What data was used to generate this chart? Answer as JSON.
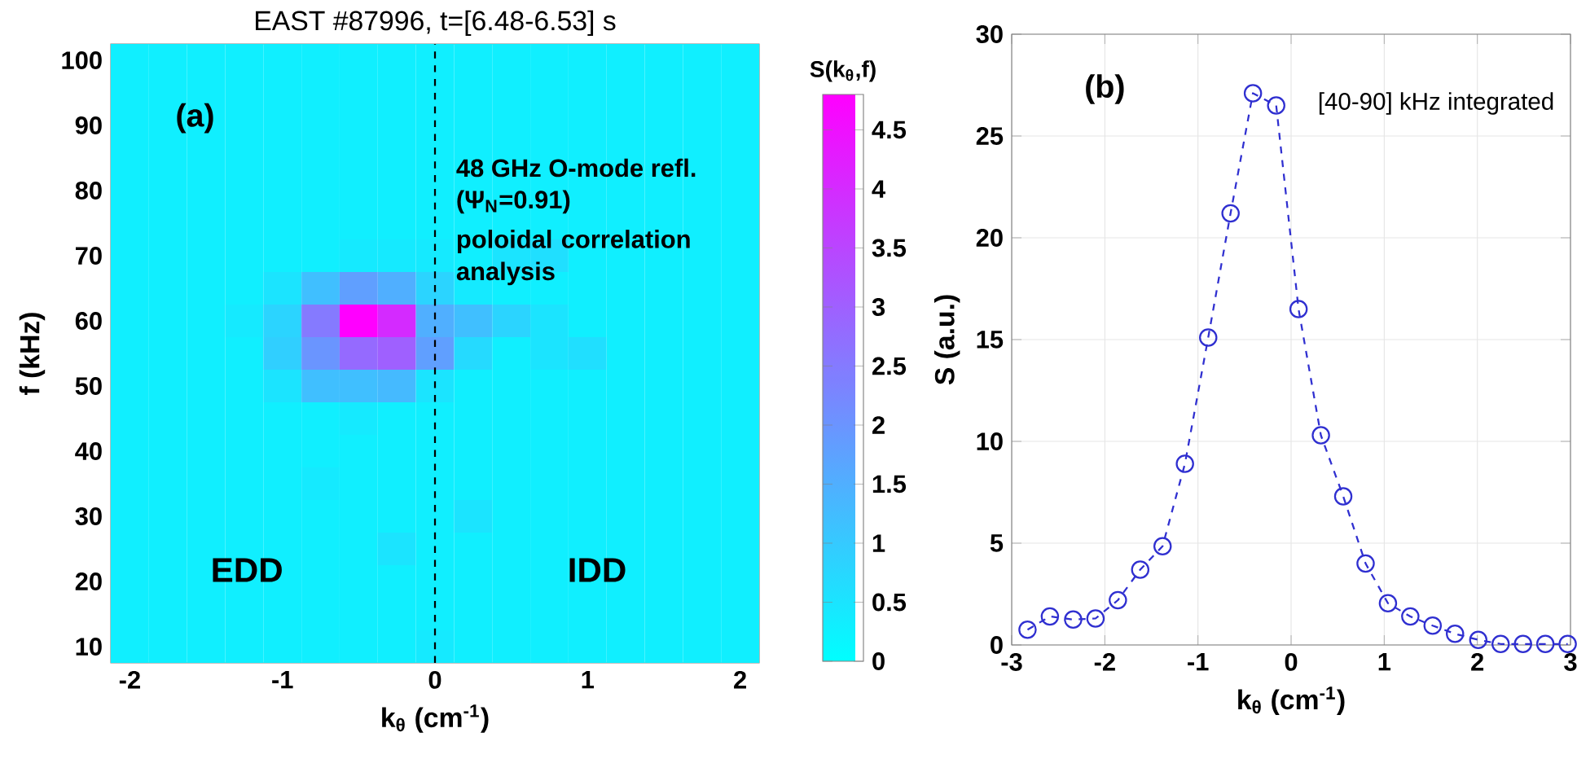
{
  "chart_data": [
    {
      "type": "heatmap",
      "title": "EAST #87996, t=[6.48-6.53] s",
      "xlabel": "k$_{θ}$ (cm$^{-1}$)",
      "ylabel": "f (kHz)",
      "clabel": "S(k$_{θ}$,f)",
      "categories": [
        "-2",
        null,
        null,
        null,
        "-1",
        null,
        null,
        null,
        "0",
        null,
        null,
        null,
        "1",
        null,
        null,
        null,
        "2"
      ],
      "y_categories": [
        "100",
        null,
        "90",
        null,
        "80",
        null,
        "70",
        null,
        "60",
        null,
        "50",
        null,
        "40",
        null,
        "30",
        null,
        "20",
        null,
        "10"
      ],
      "cells": [
        [
          0.3,
          0.3,
          0.3,
          0.3,
          0.3,
          0.3,
          0.3,
          0.3,
          0.3,
          0.3,
          0.3,
          0.3,
          0.3,
          0.3,
          0.3,
          0.3,
          0.3
        ],
        [
          0.3,
          0.3,
          0.3,
          0.3,
          0.3,
          0.3,
          0.3,
          0.3,
          0.3,
          0.3,
          0.3,
          0.3,
          0.3,
          0.3,
          0.3,
          0.3,
          0.3
        ],
        [
          0.3,
          0.3,
          0.3,
          0.3,
          0.3,
          0.3,
          0.3,
          0.3,
          0.3,
          0.3,
          0.3,
          0.3,
          0.3,
          0.3,
          0.3,
          0.3,
          0.3
        ],
        [
          0.3,
          0.3,
          0.3,
          0.3,
          0.3,
          0.3,
          0.3,
          0.3,
          0.3,
          0.3,
          0.3,
          0.3,
          0.3,
          0.3,
          0.3,
          0.3,
          0.3
        ],
        [
          0.3,
          0.3,
          0.3,
          0.3,
          0.3,
          0.3,
          0.3,
          0.3,
          0.3,
          0.3,
          0.3,
          0.3,
          0.3,
          0.3,
          0.3,
          0.3,
          0.3
        ],
        [
          0.3,
          0.3,
          0.3,
          0.3,
          0.3,
          0.3,
          0.3,
          0.3,
          0.3,
          0.3,
          0.3,
          0.3,
          0.3,
          0.3,
          0.3,
          0.3,
          0.3
        ],
        [
          0.3,
          0.3,
          0.3,
          0.3,
          0.3,
          0.3,
          0.4,
          0.4,
          0.4,
          0.3,
          0.5,
          0.6,
          0.3,
          0.3,
          0.3,
          0.3,
          0.3
        ],
        [
          0.3,
          0.3,
          0.3,
          0.3,
          0.5,
          1.2,
          1.8,
          1.5,
          0.8,
          0.4,
          0.3,
          0.3,
          0.3,
          0.3,
          0.3,
          0.3,
          0.3
        ],
        [
          0.3,
          0.3,
          0.3,
          0.4,
          0.8,
          2.5,
          4.8,
          4.0,
          1.5,
          1.2,
          0.8,
          0.5,
          0.3,
          0.3,
          0.3,
          0.3,
          0.3
        ],
        [
          0.3,
          0.3,
          0.3,
          0.3,
          0.9,
          2.0,
          2.8,
          3.0,
          1.8,
          0.7,
          0.3,
          0.5,
          0.6,
          0.3,
          0.3,
          0.3,
          0.3
        ],
        [
          0.3,
          0.3,
          0.3,
          0.3,
          0.5,
          1.2,
          1.2,
          1.3,
          0.5,
          0.3,
          0.3,
          0.3,
          0.3,
          0.3,
          0.3,
          0.3,
          0.3
        ],
        [
          0.3,
          0.3,
          0.3,
          0.3,
          0.3,
          0.3,
          0.4,
          0.3,
          0.3,
          0.3,
          0.3,
          0.3,
          0.3,
          0.3,
          0.3,
          0.3,
          0.3
        ],
        [
          0.3,
          0.3,
          0.3,
          0.3,
          0.3,
          0.3,
          0.3,
          0.3,
          0.3,
          0.3,
          0.3,
          0.3,
          0.3,
          0.3,
          0.3,
          0.3,
          0.3
        ],
        [
          0.3,
          0.3,
          0.3,
          0.3,
          0.3,
          0.4,
          0.3,
          0.3,
          0.3,
          0.3,
          0.3,
          0.3,
          0.3,
          0.3,
          0.3,
          0.3,
          0.3
        ],
        [
          0.3,
          0.3,
          0.3,
          0.3,
          0.3,
          0.3,
          0.3,
          0.3,
          0.3,
          0.5,
          0.3,
          0.3,
          0.3,
          0.3,
          0.3,
          0.3,
          0.3
        ],
        [
          0.3,
          0.3,
          0.3,
          0.3,
          0.3,
          0.3,
          0.3,
          0.5,
          0.3,
          0.3,
          0.3,
          0.3,
          0.3,
          0.3,
          0.3,
          0.3,
          0.3
        ],
        [
          0.3,
          0.3,
          0.3,
          0.3,
          0.3,
          0.3,
          0.3,
          0.3,
          0.3,
          0.3,
          0.3,
          0.3,
          0.3,
          0.3,
          0.3,
          0.3,
          0.3
        ],
        [
          0.3,
          0.3,
          0.3,
          0.3,
          0.3,
          0.3,
          0.3,
          0.3,
          0.3,
          0.3,
          0.3,
          0.3,
          0.3,
          0.3,
          0.3,
          0.3,
          0.3
        ],
        [
          0.3,
          0.3,
          0.3,
          0.3,
          0.3,
          0.3,
          0.3,
          0.3,
          0.4,
          0.3,
          0.3,
          0.3,
          0.3,
          0.3,
          0.3,
          0.3,
          0.3
        ]
      ],
      "clim": [
        0,
        4.8
      ],
      "cticks": [
        0,
        0.5,
        1,
        1.5,
        2,
        2.5,
        3,
        3.5,
        4,
        4.5
      ],
      "ref_lines": [
        {
          "axis": "x",
          "value": "0",
          "color": "#000000",
          "line_style": "dashed"
        }
      ],
      "annotations": [
        "(a)",
        "48 GHz O-mode refl.",
        "(Ψ$_{N}$=0.91)",
        "poloidal correlation analysis",
        "EDD",
        "IDD"
      ]
    },
    {
      "type": "line",
      "xlabel": "k$_{θ}$ (cm$^{-1}$)",
      "ylabel": "S (a.u.)",
      "x": [
        -2.83,
        -2.59,
        -2.34,
        -2.1,
        -1.86,
        -1.62,
        -1.38,
        -1.14,
        -0.89,
        -0.65,
        -0.41,
        -0.16,
        0.08,
        0.32,
        0.56,
        0.8,
        1.04,
        1.28,
        1.52,
        1.76,
        2.01,
        2.25,
        2.49,
        2.73,
        2.97
      ],
      "series": [
        {
          "color": "#2f2fd0",
          "values": [
            0.75,
            1.4,
            1.25,
            1.3,
            2.2,
            3.7,
            4.85,
            8.9,
            15.1,
            21.2,
            27.1,
            26.5,
            16.5,
            10.3,
            7.3,
            4.0,
            2.05,
            1.4,
            0.95,
            0.55,
            0.25,
            0.05,
            0.05,
            0.05,
            0.05
          ]
        }
      ],
      "xlim": [
        -3,
        3
      ],
      "xticks": [
        -3,
        -2,
        -1,
        0,
        1,
        2,
        3
      ],
      "ylim": [
        0,
        30
      ],
      "yticks": [
        0,
        5,
        10,
        15,
        20,
        25,
        30
      ],
      "grid": true,
      "marker": "circle",
      "line_style": "dashed",
      "annotations": [
        "(b)",
        "[40-90] kHz integrated"
      ]
    }
  ]
}
